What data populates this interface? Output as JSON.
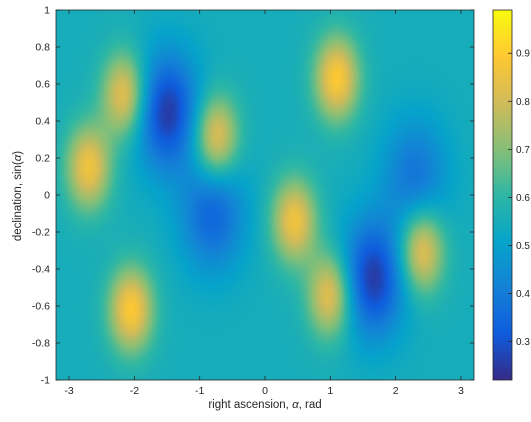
{
  "chart_data": {
    "type": "heatmap",
    "title": "",
    "xlabel_parts": [
      "right ascension, ",
      "α",
      ", rad"
    ],
    "ylabel_parts": [
      "declination, sin(",
      "α",
      ")"
    ],
    "xlim": [
      -3.2,
      3.2
    ],
    "ylim": [
      -1,
      1
    ],
    "xticks": [
      -3,
      -2,
      -1,
      0,
      1,
      2,
      3
    ],
    "xtick_labels": [
      "-3",
      "-2",
      "-1",
      "0",
      "1",
      "2",
      "3"
    ],
    "yticks": [
      1,
      0.8,
      0.6,
      0.4,
      0.2,
      0,
      -0.2,
      -0.4,
      -0.6,
      -0.8,
      -1
    ],
    "ytick_labels": [
      "1",
      "0.8",
      "0.6",
      "0.4",
      "0.2",
      "0",
      "-0.2",
      "-0.4",
      "-0.6",
      "-0.8",
      "-1"
    ],
    "colorbar": {
      "range": [
        0.22,
        0.99
      ],
      "ticks": [
        0.9,
        0.8,
        0.7,
        0.6,
        0.5,
        0.4,
        0.3
      ],
      "tick_labels": [
        "0.9",
        "0.8",
        "0.7",
        "0.6",
        "0.5",
        "0.4",
        "0.3"
      ],
      "colormap": "parula",
      "colors": [
        "#352a87",
        "#0f5cdd",
        "#1481d6",
        "#06a4ca",
        "#2eb7a4",
        "#87bf77",
        "#d1bb59",
        "#fec832",
        "#f9fb0e"
      ]
    },
    "background_level": 0.55,
    "grid": false,
    "peaks": [
      {
        "x": 1.1,
        "y": 0.63,
        "value": 0.89
      },
      {
        "x": -2.05,
        "y": -0.62,
        "value": 0.89
      },
      {
        "x": -2.15,
        "y": 0.54,
        "value": 0.86
      },
      {
        "x": -2.7,
        "y": 0.15,
        "value": 0.86
      },
      {
        "x": -0.75,
        "y": 0.31,
        "value": 0.86
      },
      {
        "x": 0.45,
        "y": -0.14,
        "value": 0.86
      },
      {
        "x": 1.0,
        "y": -0.54,
        "value": 0.86
      },
      {
        "x": 2.4,
        "y": -0.3,
        "value": 0.86
      }
    ],
    "troughs": [
      {
        "x": -1.5,
        "y": 0.45,
        "value": 0.25
      },
      {
        "x": -0.8,
        "y": -0.1,
        "value": 0.34
      },
      {
        "x": 1.65,
        "y": -0.45,
        "value": 0.25
      },
      {
        "x": 2.3,
        "y": 0.1,
        "value": 0.38
      }
    ]
  }
}
